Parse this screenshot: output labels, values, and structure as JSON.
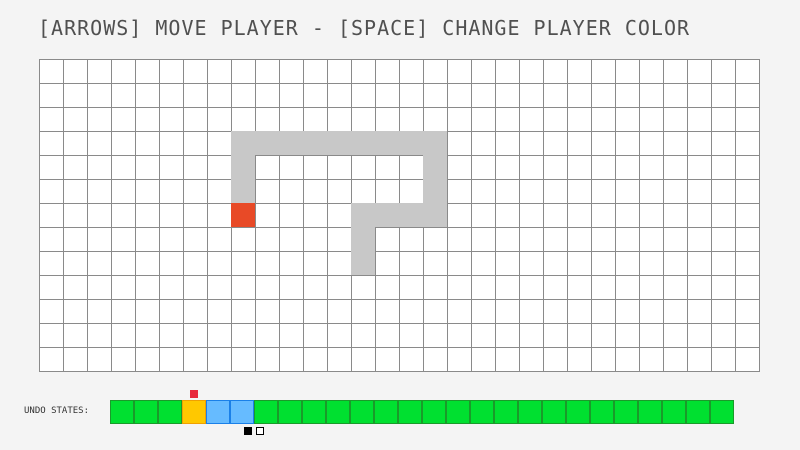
{
  "title": "[ARROWS] MOVE PLAYER - [SPACE] CHANGE PLAYER COLOR",
  "board": {
    "cols": 30,
    "rows": 13,
    "colors": {
      "empty": "#ffffff",
      "wall": "#c8c8c8",
      "player": "#e84a27",
      "line": "#8a8a8a"
    },
    "walls": [
      [
        3,
        8
      ],
      [
        3,
        9
      ],
      [
        3,
        10
      ],
      [
        3,
        11
      ],
      [
        3,
        12
      ],
      [
        3,
        13
      ],
      [
        3,
        14
      ],
      [
        3,
        15
      ],
      [
        3,
        16
      ],
      [
        4,
        8
      ],
      [
        4,
        16
      ],
      [
        5,
        8
      ],
      [
        5,
        16
      ],
      [
        6,
        13
      ],
      [
        6,
        14
      ],
      [
        6,
        15
      ],
      [
        6,
        16
      ],
      [
        7,
        13
      ],
      [
        8,
        13
      ]
    ],
    "player": [
      6,
      8
    ]
  },
  "undo": {
    "label": "UNDO STATES:",
    "states": [
      "green",
      "green",
      "green",
      "yellow",
      "blue",
      "blue",
      "green",
      "green",
      "green",
      "green",
      "green",
      "green",
      "green",
      "green",
      "green",
      "green",
      "green",
      "green",
      "green",
      "green",
      "green",
      "green",
      "green",
      "green",
      "green",
      "green"
    ],
    "colors": {
      "green": "#00e030",
      "yellow": "#ffc800",
      "blue": "#66bbff"
    },
    "current_marker_index": 3,
    "marker_color": "#e8283c",
    "cursor_filled_index": 5,
    "cursor_hollow_index": 5
  }
}
